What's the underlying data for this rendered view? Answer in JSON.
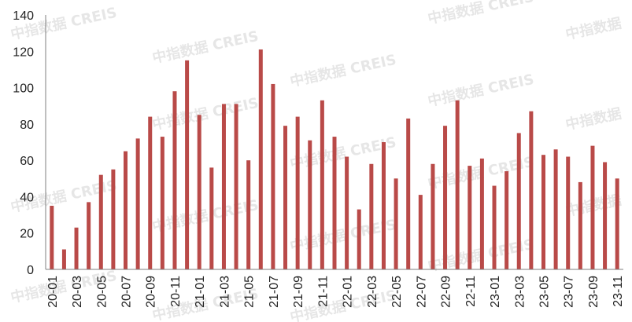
{
  "watermark": {
    "text": "中指数据 CREIS",
    "text_short": "中指数据"
  },
  "chart_data": {
    "type": "bar",
    "bar_color": "#b94a48",
    "ylim": [
      0,
      140
    ],
    "yticks": [
      0,
      20,
      40,
      60,
      80,
      100,
      120,
      140
    ],
    "grid": false,
    "categories": [
      "20-01",
      "20-02",
      "20-03",
      "20-04",
      "20-05",
      "20-06",
      "20-07",
      "20-08",
      "20-09",
      "20-10",
      "20-11",
      "20-12",
      "21-01",
      "21-02",
      "21-03",
      "21-04",
      "21-05",
      "21-06",
      "21-07",
      "21-08",
      "21-09",
      "21-10",
      "21-11",
      "21-12",
      "22-01",
      "22-02",
      "22-03",
      "22-04",
      "22-05",
      "22-06",
      "22-07",
      "22-08",
      "22-09",
      "22-10",
      "22-11",
      "22-12",
      "23-01",
      "23-02",
      "23-03",
      "23-04",
      "23-05",
      "23-06",
      "23-07",
      "23-08",
      "23-09",
      "23-10",
      "23-11"
    ],
    "tick_labels": [
      "20-01",
      "20-03",
      "20-05",
      "20-07",
      "20-09",
      "20-11",
      "21-01",
      "21-03",
      "21-05",
      "21-07",
      "21-09",
      "21-11",
      "22-01",
      "22-03",
      "22-05",
      "22-07",
      "22-09",
      "22-11",
      "23-01",
      "23-03",
      "23-05",
      "23-07",
      "23-09",
      "23-11"
    ],
    "values": [
      35,
      11,
      23,
      37,
      52,
      55,
      65,
      72,
      84,
      73,
      98,
      115,
      85,
      56,
      91,
      91,
      60,
      121,
      102,
      79,
      84,
      71,
      93,
      73,
      62,
      33,
      58,
      70,
      50,
      83,
      41,
      58,
      79,
      93,
      57,
      61,
      46,
      54,
      75,
      87,
      63,
      66,
      62,
      48,
      68,
      59,
      50
    ]
  }
}
